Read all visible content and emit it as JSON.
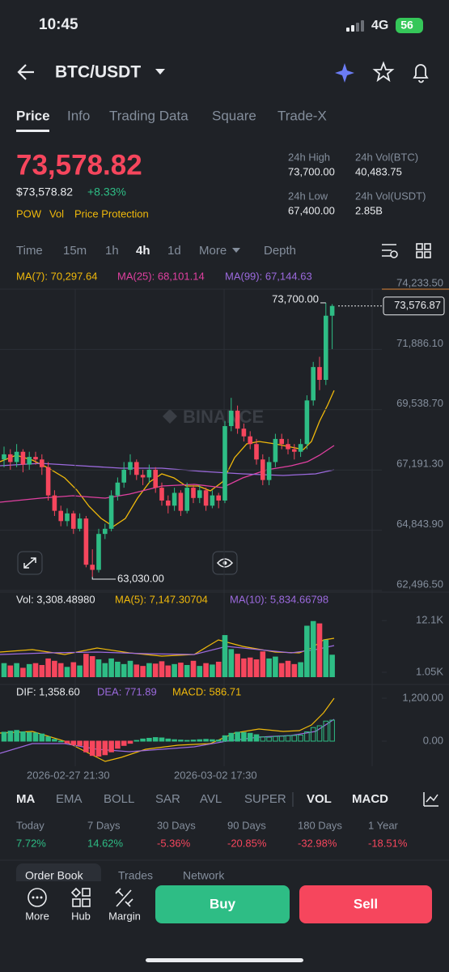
{
  "status": {
    "time": "10:45",
    "network": "4G",
    "battery": "56"
  },
  "header": {
    "pair": "BTC/USDT"
  },
  "tabs": [
    "Price",
    "Info",
    "Trading Data",
    "Square",
    "Trade-X"
  ],
  "price": {
    "last": "73,578.82",
    "usd": "$73,578.82",
    "change": "+8.33%",
    "tags": [
      "POW",
      "Vol",
      "Price Protection"
    ]
  },
  "stats": [
    {
      "label": "24h High",
      "value": "73,700.00"
    },
    {
      "label": "24h Vol(BTC)",
      "value": "40,483.75"
    },
    {
      "label": "24h Low",
      "value": "67,400.00"
    },
    {
      "label": "24h Vol(USDT)",
      "value": "2.85B"
    }
  ],
  "intervals": [
    "Time",
    "15m",
    "1h",
    "4h",
    "1d",
    "More",
    "Depth"
  ],
  "chart_data": {
    "type": "candlestick",
    "ma_legend": [
      "MA(7): 70,297.64",
      "MA(25): 68,101.14",
      "MA(99): 67,144.63"
    ],
    "watermark": "BINANCE",
    "ylim": [
      62496.5,
      74233.5
    ],
    "yticks": [
      {
        "value": 74233.5,
        "label": "74,233.50"
      },
      {
        "value": 71886.1,
        "label": "71,886.10"
      },
      {
        "value": 69538.7,
        "label": "69,538.70"
      },
      {
        "value": 67191.3,
        "label": "67,191.30"
      },
      {
        "value": 64843.9,
        "label": "64,843.90"
      },
      {
        "value": 62496.5,
        "label": "62,496.50"
      }
    ],
    "high_label": {
      "value": 73700,
      "label": "73,700.00"
    },
    "low_label": {
      "value": 63030,
      "label": "63,030.00"
    },
    "last_price": {
      "value": 73576.87,
      "label": "73,576.87"
    },
    "candles": [
      [
        67600,
        68100,
        67300,
        67800
      ],
      [
        67800,
        68000,
        67200,
        67500
      ],
      [
        67500,
        68200,
        67300,
        67900
      ],
      [
        67900,
        68000,
        67100,
        67400
      ],
      [
        67400,
        67900,
        67200,
        67700
      ],
      [
        67700,
        67900,
        67400,
        67600
      ],
      [
        67600,
        67800,
        67000,
        67300
      ],
      [
        67300,
        67500,
        66000,
        66200
      ],
      [
        66200,
        66400,
        65400,
        65600
      ],
      [
        65600,
        65800,
        65000,
        65200
      ],
      [
        65200,
        65700,
        65000,
        65500
      ],
      [
        65500,
        65600,
        64700,
        64900
      ],
      [
        64900,
        65500,
        64800,
        65300
      ],
      [
        65300,
        65400,
        63400,
        63500
      ],
      [
        63500,
        64100,
        63030,
        63300
      ],
      [
        63300,
        64900,
        63200,
        64700
      ],
      [
        64700,
        65100,
        64500,
        64900
      ],
      [
        64900,
        66400,
        64800,
        66200
      ],
      [
        66200,
        66900,
        66000,
        66700
      ],
      [
        66700,
        67500,
        66500,
        67200
      ],
      [
        67200,
        67800,
        67000,
        67500
      ],
      [
        67500,
        67600,
        66800,
        67000
      ],
      [
        67000,
        67200,
        66600,
        66900
      ],
      [
        66900,
        67400,
        66700,
        67200
      ],
      [
        67200,
        67300,
        66300,
        66500
      ],
      [
        66500,
        66700,
        65800,
        66000
      ],
      [
        66000,
        66200,
        65500,
        65800
      ],
      [
        65800,
        66500,
        65600,
        66300
      ],
      [
        66300,
        66400,
        65400,
        65600
      ],
      [
        65600,
        66700,
        65500,
        66500
      ],
      [
        66500,
        66600,
        65900,
        66100
      ],
      [
        66100,
        66600,
        65900,
        66400
      ],
      [
        66400,
        66500,
        65600,
        65800
      ],
      [
        65800,
        66400,
        65700,
        66200
      ],
      [
        66200,
        66300,
        65700,
        66000
      ],
      [
        66000,
        69100,
        65900,
        68900
      ],
      [
        68900,
        70000,
        68700,
        69500
      ],
      [
        69500,
        69700,
        68600,
        68800
      ],
      [
        68800,
        69000,
        68300,
        68500
      ],
      [
        68500,
        68700,
        68000,
        68200
      ],
      [
        68200,
        68400,
        67400,
        67600
      ],
      [
        67600,
        67800,
        66600,
        66800
      ],
      [
        66800,
        67700,
        66600,
        67500
      ],
      [
        67500,
        68600,
        67300,
        68400
      ],
      [
        68400,
        68600,
        68000,
        68200
      ],
      [
        68200,
        68400,
        67800,
        68000
      ],
      [
        68000,
        68200,
        67600,
        67900
      ],
      [
        67900,
        68400,
        67700,
        68200
      ],
      [
        68200,
        70100,
        68000,
        69900
      ],
      [
        69900,
        71400,
        69700,
        71200
      ],
      [
        71200,
        71600,
        70300,
        70700
      ],
      [
        70700,
        73700,
        70500,
        73200
      ],
      [
        73200,
        73650,
        71900,
        73580
      ]
    ],
    "volume": {
      "legend": [
        "Vol: 3,308.48980",
        "MA(5): 7,147.30704",
        "MA(10): 5,834.66798"
      ],
      "ylim": [
        0,
        12300
      ],
      "yticks": [
        {
          "value": 12100,
          "label": "12.1K"
        },
        {
          "value": 1050,
          "label": "1.05K"
        }
      ],
      "values": [
        3000,
        2500,
        3000,
        2000,
        2800,
        3000,
        2600,
        4000,
        3500,
        3000,
        2200,
        3200,
        2500,
        5000,
        4500,
        3800,
        3000,
        4000,
        3300,
        2800,
        3500,
        2700,
        2400,
        3000,
        2900,
        3400,
        2500,
        2800,
        3100,
        2600,
        3500,
        2400,
        3000,
        2700,
        3300,
        9000,
        6000,
        5000,
        4000,
        4200,
        3800,
        5500,
        4000,
        4400,
        3000,
        3500,
        2800,
        3200,
        11000,
        12000,
        11500,
        8000,
        4800
      ]
    },
    "macd": {
      "legend": [
        "DIF: 1,358.60",
        "DEA: 771.89",
        "MACD: 586.71"
      ],
      "ylim": [
        -700,
        1300
      ],
      "yticks": [
        {
          "value": 1200,
          "label": "1,200.00"
        },
        {
          "value": 0,
          "label": "0.00"
        }
      ],
      "values": [
        250,
        280,
        300,
        260,
        240,
        230,
        200,
        120,
        50,
        0,
        -50,
        -100,
        -120,
        -300,
        -400,
        -420,
        -380,
        -300,
        -200,
        -120,
        -60,
        20,
        60,
        80,
        100,
        90,
        60,
        40,
        30,
        20,
        30,
        40,
        50,
        40,
        30,
        150,
        220,
        250,
        240,
        220,
        180,
        120,
        110,
        130,
        140,
        150,
        160,
        170,
        260,
        380,
        430,
        560,
        586.71
      ]
    },
    "dates": [
      "2026-02-27 21:30",
      "2026-03-02 17:30"
    ]
  },
  "indicators": [
    "MA",
    "EMA",
    "BOLL",
    "SAR",
    "AVL",
    "SUPER",
    "VOL",
    "MACD"
  ],
  "performance": [
    {
      "period": "Today",
      "value": "7.72%"
    },
    {
      "period": "7 Days",
      "value": "14.62%"
    },
    {
      "period": "30 Days",
      "value": "-5.36%"
    },
    {
      "period": "90 Days",
      "value": "-20.85%"
    },
    {
      "period": "180 Days",
      "value": "-32.98%"
    },
    {
      "period": "1 Year",
      "value": "-18.51%"
    }
  ],
  "bottom_tabs": [
    "Order Book",
    "Trades",
    "Network"
  ],
  "nav": [
    "More",
    "Hub",
    "Margin"
  ],
  "buttons": {
    "buy": "Buy",
    "sell": "Sell"
  }
}
